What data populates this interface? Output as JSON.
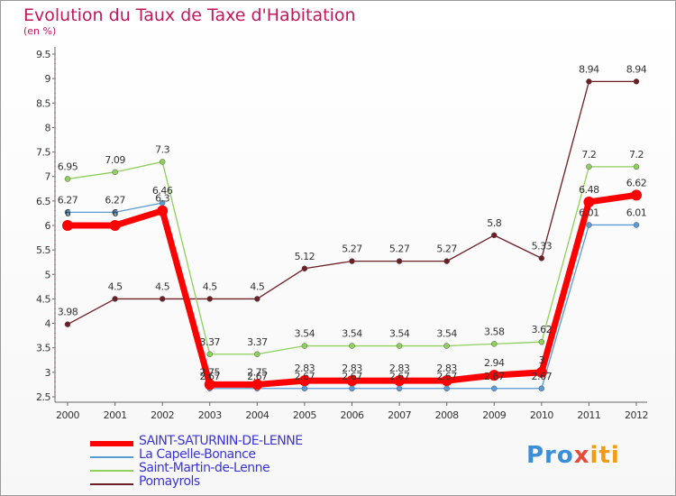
{
  "title": "Evolution du Taux de Taxe d'Habitation",
  "subtitle": "(en %)",
  "logo": {
    "part1": "Pro",
    "part2": "x",
    "part3": "iti"
  },
  "chart_data": {
    "type": "line",
    "x": [
      "2000",
      "2001",
      "2002",
      "2003",
      "2004",
      "2005",
      "2006",
      "2007",
      "2008",
      "2009",
      "2010",
      "2011",
      "2012"
    ],
    "ylim": [
      2.5,
      9.5
    ],
    "yticks": [
      "2.5",
      "3",
      "3.5",
      "4",
      "4.5",
      "5",
      "5.5",
      "6",
      "6.5",
      "7",
      "7.5",
      "8",
      "8.5",
      "9",
      "9.5"
    ],
    "grid": false,
    "legend": "bottom-left",
    "series": [
      {
        "name": "Pomayrols",
        "color": "#6e1f26",
        "values": [
          3.98,
          4.5,
          4.5,
          4.5,
          4.5,
          5.12,
          5.27,
          5.27,
          5.27,
          5.8,
          5.33,
          8.94,
          8.94
        ],
        "labels": [
          "3.98",
          "4.5",
          "4.5",
          "4.5",
          "4.5",
          "5.12",
          "5.27",
          "5.27",
          "5.27",
          "5.8",
          "5.33",
          "8.94",
          "8.94"
        ]
      },
      {
        "name": "Saint-Martin-de-Lenne",
        "color": "#8fd05a",
        "values": [
          6.95,
          7.09,
          7.3,
          3.37,
          3.37,
          3.54,
          3.54,
          3.54,
          3.54,
          3.58,
          3.62,
          7.2,
          7.2
        ],
        "labels": [
          "6.95",
          "7.09",
          "7.3",
          "3.37",
          "3.37",
          "3.54",
          "3.54",
          "3.54",
          "3.54",
          "3.58",
          "3.62",
          "7.2",
          "7.2"
        ]
      },
      {
        "name": "La Capelle-Bonance",
        "color": "#5b9bd5",
        "values": [
          6.27,
          6.27,
          6.46,
          2.67,
          2.67,
          2.67,
          2.67,
          2.67,
          2.67,
          2.67,
          2.67,
          6.01,
          6.01
        ],
        "labels": [
          "6.27",
          "6.27",
          "6.46",
          "2.67",
          "2.67",
          "2.67",
          "2.67",
          "2.67",
          "2.67",
          "2.67",
          "2.67",
          "6.01",
          "6.01"
        ]
      },
      {
        "name": "SAINT-SATURNIN-DE-LENNE",
        "color": "#ff0000",
        "values": [
          6.0,
          6.0,
          6.3,
          2.75,
          2.75,
          2.83,
          2.83,
          2.83,
          2.83,
          2.94,
          3.0,
          6.48,
          6.62
        ],
        "labels": [
          "6",
          "6",
          "6.3",
          "2.75",
          "2.75",
          "2.83",
          "2.83",
          "2.83",
          "2.83",
          "2.94",
          "3",
          "6.48",
          "6.62"
        ]
      }
    ],
    "legend_order": [
      "SAINT-SATURNIN-DE-LENNE",
      "La Capelle-Bonance",
      "Saint-Martin-de-Lenne",
      "Pomayrols"
    ]
  }
}
